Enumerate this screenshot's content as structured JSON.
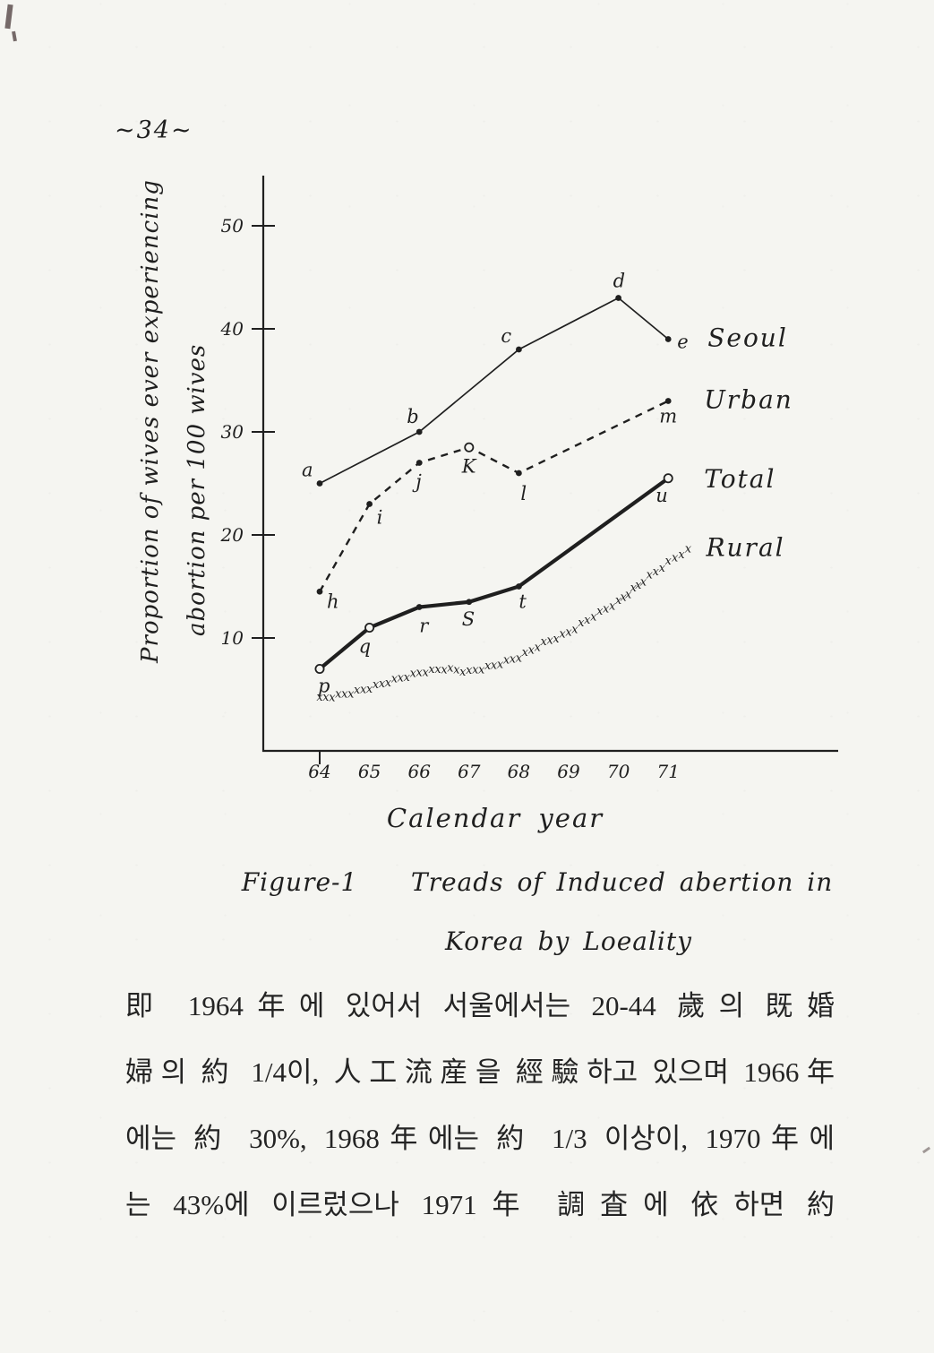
{
  "page": {
    "number": "~34~"
  },
  "figure": {
    "y_axis_label_line1": "Proportion of wives ever experiencing",
    "y_axis_label_line2": "abortion per 100 wives",
    "x_axis_label": "Calendar year",
    "caption_line1": "Figure-1    Treads of Induced abertion in",
    "caption_line2": "Korea  by  Loeality"
  },
  "colors": {
    "ink": "#1f1f1f",
    "paper": "#f5f5f1"
  },
  "chart_data": {
    "type": "line",
    "title": "Figure-1 Treads of Induced abertion in Korea by Loeality",
    "xlabel": "Calendar year",
    "ylabel": "Proportion of wives ever experiencing abortion per 100 wives",
    "x_ticks": [
      "64",
      "65",
      "66",
      "67",
      "68",
      "69",
      "70",
      "71"
    ],
    "y_ticks": [
      50,
      40,
      30,
      20,
      10
    ],
    "ylim": [
      0,
      53
    ],
    "grid": false,
    "legend_position": "right-of-line-ends",
    "series": [
      {
        "name": "Seoul",
        "line_style": "solid-thin",
        "points": [
          {
            "year": 64,
            "value": 25,
            "label": "a"
          },
          {
            "year": 66,
            "value": 30,
            "label": "b"
          },
          {
            "year": 68,
            "value": 38,
            "label": "c"
          },
          {
            "year": 70,
            "value": 43,
            "label": "d"
          },
          {
            "year": 71,
            "value": 39,
            "label": "e"
          }
        ]
      },
      {
        "name": "Urban",
        "line_style": "dashed",
        "points": [
          {
            "year": 64,
            "value": 14.5,
            "label": "h"
          },
          {
            "year": 65,
            "value": 23,
            "label": "i"
          },
          {
            "year": 66,
            "value": 27,
            "label": "j"
          },
          {
            "year": 67,
            "value": 28.5,
            "label": "K",
            "marker": "open"
          },
          {
            "year": 68,
            "value": 26,
            "label": "l"
          },
          {
            "year": 71,
            "value": 33,
            "label": "m"
          }
        ]
      },
      {
        "name": "Total",
        "line_style": "solid-thick",
        "points": [
          {
            "year": 64,
            "value": 7,
            "label": "p",
            "marker": "open"
          },
          {
            "year": 65,
            "value": 11,
            "label": "q",
            "marker": "open"
          },
          {
            "year": 66,
            "value": 13,
            "label": "r"
          },
          {
            "year": 67,
            "value": 13.5,
            "label": "S"
          },
          {
            "year": 68,
            "value": 15,
            "label": "t"
          },
          {
            "year": 71,
            "value": 25.5,
            "label": "u",
            "marker": "open"
          }
        ]
      },
      {
        "name": "Rural",
        "line_style": "x-marks",
        "points": [
          {
            "year": 64,
            "value": 3.8
          },
          {
            "year": 64.5,
            "value": 4.2
          },
          {
            "year": 65,
            "value": 4.8
          },
          {
            "year": 65.5,
            "value": 5.6
          },
          {
            "year": 66,
            "value": 6.3
          },
          {
            "year": 66.5,
            "value": 6.7
          },
          {
            "year": 67,
            "value": 6.4
          },
          {
            "year": 67.5,
            "value": 7.0
          },
          {
            "year": 68,
            "value": 7.8
          },
          {
            "year": 68.5,
            "value": 9.2
          },
          {
            "year": 69,
            "value": 10.2
          },
          {
            "year": 69.5,
            "value": 11.8
          },
          {
            "year": 70,
            "value": 13.2
          },
          {
            "year": 70.5,
            "value": 15.2
          },
          {
            "year": 71,
            "value": 17.0
          },
          {
            "year": 71.4,
            "value": 18.3
          }
        ]
      }
    ]
  },
  "body_text": {
    "lines": [
      "即 1964年에 있어서 서울에서는 20-44 歲의 既婚",
      "婦의 約 1/4이, 人工流産을 經驗하고 있으며 1966年",
      "에는 約 30%, 1968年에는 約 1/3 이상이, 1970年에",
      "는 43%에 이르렀으나 1971年 調査에 依하면 約"
    ]
  }
}
